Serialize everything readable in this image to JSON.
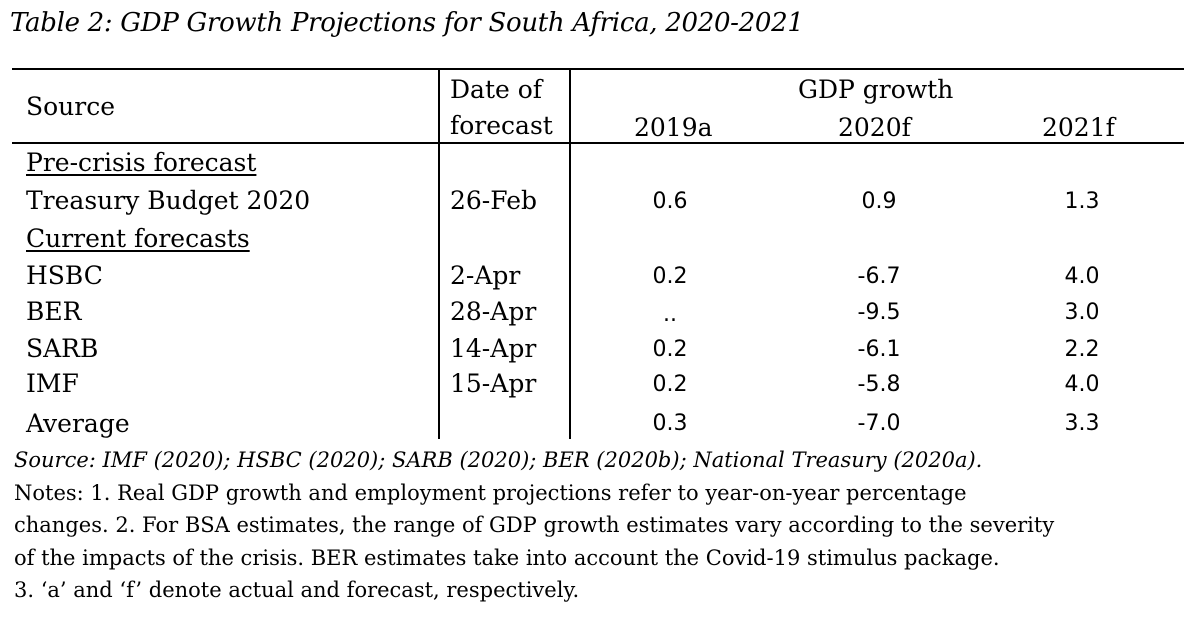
{
  "title": "Table 2: GDP Growth Projections for South Africa, 2020-2021",
  "headers": {
    "source": "Source",
    "date_line1": "Date of",
    "date_line2": "forecast",
    "gdp_growth": "GDP growth",
    "col_2019": "2019a",
    "col_2020": "2020f",
    "col_2021": "2021f"
  },
  "sections": {
    "pre_crisis": "Pre-crisis forecast",
    "current": "Current forecasts"
  },
  "rows": [
    {
      "source": "Treasury Budget 2020",
      "date": "26-Feb",
      "y2019": "0.6",
      "y2020": "0.9",
      "y2021": "1.3"
    },
    {
      "source": "HSBC",
      "date": "2-Apr",
      "y2019": "0.2",
      "y2020": "-6.7",
      "y2021": "4.0"
    },
    {
      "source": "BER",
      "date": "28-Apr",
      "y2019": "..",
      "y2020": "-9.5",
      "y2021": "3.0"
    },
    {
      "source": "SARB",
      "date": "14-Apr",
      "y2019": "0.2",
      "y2020": "-6.1",
      "y2021": "2.2"
    },
    {
      "source": "IMF",
      "date": "15-Apr",
      "y2019": "0.2",
      "y2020": "-5.8",
      "y2021": "4.0"
    }
  ],
  "average": {
    "label": "Average",
    "y2019": "0.3",
    "y2020": "-7.0",
    "y2021": "3.3"
  },
  "source_line": "Source: IMF (2020); HSBC (2020); SARB (2020); BER (2020b); National Treasury (2020a).",
  "notes": [
    "Notes: 1. Real GDP growth and employment projections refer to year-on-year percentage",
    "changes. 2. For BSA estimates, the range of GDP growth estimates vary according to the severity",
    "of the impacts of the crisis. BER estimates take into account the Covid-19 stimulus package.",
    "3. ‘a’ and ‘f’ denote actual and forecast, respectively."
  ]
}
